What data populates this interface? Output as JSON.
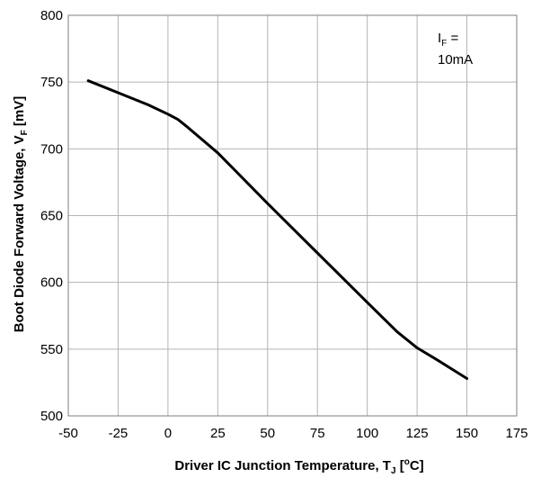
{
  "chart_data": {
    "type": "line",
    "title": "",
    "xlabel": {
      "main": "Driver IC Junction Temperature, T",
      "sub": "J",
      "tail": " [",
      "sup": "o",
      "unit": "C]"
    },
    "ylabel": {
      "main": "Boot Diode Forward Voltage, V",
      "sub": "F",
      "unit": " [mV]"
    },
    "xlim": [
      -50,
      175
    ],
    "ylim": [
      500,
      800
    ],
    "x_ticks": [
      -50,
      -25,
      0,
      25,
      50,
      75,
      100,
      125,
      150,
      175
    ],
    "y_ticks": [
      500,
      550,
      600,
      650,
      700,
      750,
      800
    ],
    "grid": true,
    "annotation": {
      "line1_main": "I",
      "line1_sub": "F",
      "line1_tail": " =",
      "line2": "10mA"
    },
    "series": [
      {
        "color": "#000000",
        "x": [
          -40,
          -25,
          -10,
          0,
          5,
          10,
          25,
          50,
          75,
          100,
          115,
          125,
          135,
          150
        ],
        "y": [
          751,
          742,
          733,
          726,
          722,
          716,
          697,
          659,
          622,
          585,
          563,
          551,
          542,
          528
        ]
      }
    ]
  }
}
